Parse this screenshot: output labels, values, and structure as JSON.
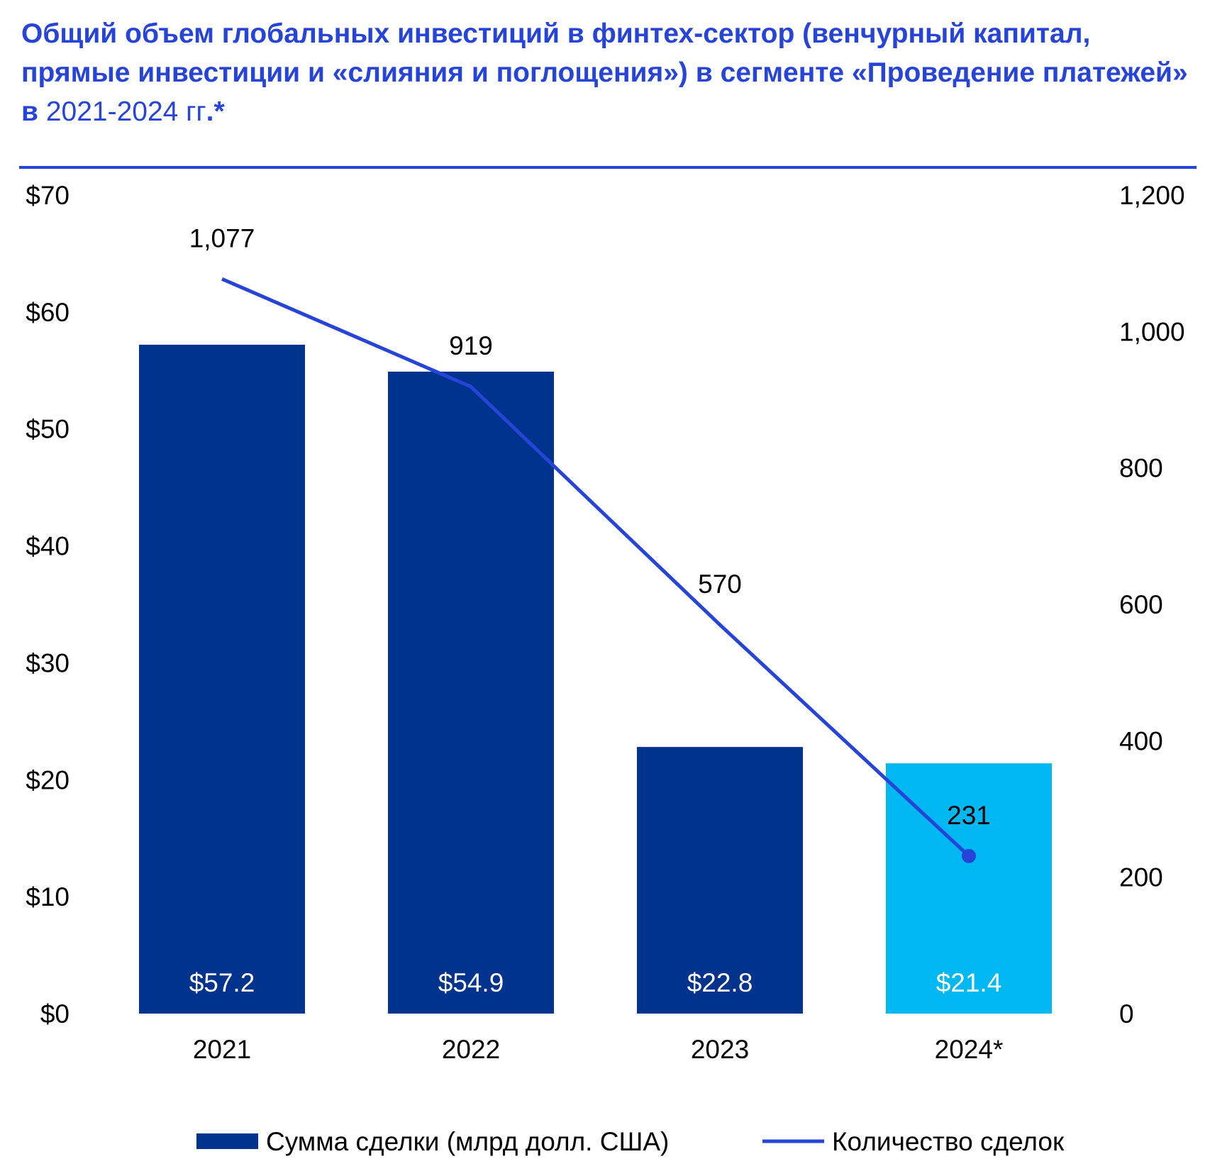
{
  "title": {
    "bold": "Общий объем глобальных инвестиций в финтех-сектор (венчурный капитал, прямые инвестиции и «слияния и поглощения») в сегменте «Проведение платежей» в",
    "regular": "2021-2024 гг",
    "suffix": ".*"
  },
  "colors": {
    "bar": "#00338d",
    "bar_highlight": "#00b8f1",
    "line": "#2744d8",
    "title": "#2744d8"
  },
  "chart_data": {
    "type": "bar+line",
    "categories": [
      "2021",
      "2022",
      "2023",
      "2024*"
    ],
    "series": [
      {
        "name": "Сумма сделки (млрд долл. США)",
        "type": "bar",
        "axis": "left",
        "values": [
          57.2,
          54.9,
          22.8,
          21.4
        ],
        "labels": [
          "$57.2",
          "$54.9",
          "$22.8",
          "$21.4"
        ]
      },
      {
        "name": "Количество сделок",
        "type": "line",
        "axis": "right",
        "values": [
          1077,
          919,
          570,
          231
        ],
        "labels": [
          "1,077",
          "919",
          "570",
          "231"
        ]
      }
    ],
    "left_axis": {
      "range": [
        0,
        70
      ],
      "ticks": [
        "$0",
        "$10",
        "$20",
        "$30",
        "$40",
        "$50",
        "$60",
        "$70"
      ]
    },
    "right_axis": {
      "range": [
        0,
        1200
      ],
      "ticks": [
        "0",
        "200",
        "400",
        "600",
        "800",
        "1,000",
        "1,200"
      ]
    },
    "legend": {
      "position": "bottom",
      "items": [
        "Сумма сделки (млрд долл. США)",
        "Количество сделок"
      ]
    },
    "grid": false
  }
}
